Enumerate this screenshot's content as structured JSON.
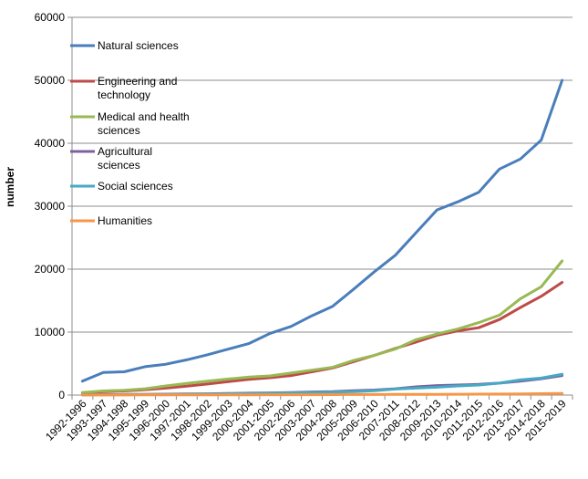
{
  "chart_data": {
    "type": "line",
    "title": "",
    "xlabel": "",
    "ylabel": "number",
    "ylim": [
      0,
      60000
    ],
    "yticks": [
      0,
      10000,
      20000,
      30000,
      40000,
      50000,
      60000
    ],
    "grid": "horizontal",
    "legend_position": "top-left",
    "categories": [
      "1992-1996",
      "1993-1997",
      "1994-1998",
      "1995-1999",
      "1996-2000",
      "1997-2001",
      "1998-2002",
      "1999-2003",
      "2000-2004",
      "2001-2005",
      "2002-2006",
      "2003-2007",
      "2004-2008",
      "2005-2009",
      "2006-2010",
      "2007-2011",
      "2008-2012",
      "2009-2013",
      "2010-2014",
      "2011-2015",
      "2012-2016",
      "2013-2017",
      "2014-2018",
      "2015-2019"
    ],
    "series": [
      {
        "name": "Natural sciences",
        "color": "#4a7ebb",
        "values": [
          2200,
          3600,
          3700,
          4500,
          4900,
          5600,
          6400,
          7300,
          8200,
          9800,
          10900,
          12600,
          14100,
          16800,
          19600,
          22200,
          25800,
          29400,
          30700,
          32200,
          35900,
          37500,
          40500,
          50000
        ]
      },
      {
        "name": "Engineering and technology",
        "color": "#be4b48",
        "values": [
          300,
          550,
          650,
          850,
          1100,
          1400,
          1750,
          2150,
          2500,
          2750,
          3100,
          3700,
          4300,
          5300,
          6300,
          7400,
          8400,
          9500,
          10200,
          10700,
          12000,
          13900,
          15700,
          17900
        ]
      },
      {
        "name": "Medical and health sciences",
        "color": "#98b954",
        "values": [
          400,
          650,
          750,
          1000,
          1450,
          1850,
          2200,
          2550,
          2850,
          3050,
          3500,
          3950,
          4400,
          5500,
          6300,
          7300,
          8800,
          9700,
          10500,
          11500,
          12700,
          15300,
          17200,
          21300
        ]
      },
      {
        "name": "Agricultural sciences",
        "color": "#7d60a0",
        "values": [
          50,
          80,
          100,
          120,
          150,
          180,
          200,
          250,
          300,
          350,
          400,
          500,
          550,
          700,
          800,
          1000,
          1300,
          1500,
          1600,
          1700,
          1900,
          2200,
          2600,
          3100
        ]
      },
      {
        "name": "Social sciences",
        "color": "#46aac5",
        "values": [
          30,
          50,
          60,
          80,
          100,
          130,
          160,
          200,
          250,
          300,
          350,
          400,
          450,
          550,
          700,
          950,
          1100,
          1250,
          1450,
          1600,
          1900,
          2400,
          2700,
          3300
        ]
      },
      {
        "name": "Humanities",
        "color": "#f79646",
        "values": [
          10,
          15,
          20,
          25,
          30,
          35,
          40,
          45,
          50,
          55,
          60,
          65,
          70,
          80,
          90,
          100,
          110,
          120,
          130,
          140,
          160,
          180,
          220,
          260
        ]
      }
    ]
  }
}
